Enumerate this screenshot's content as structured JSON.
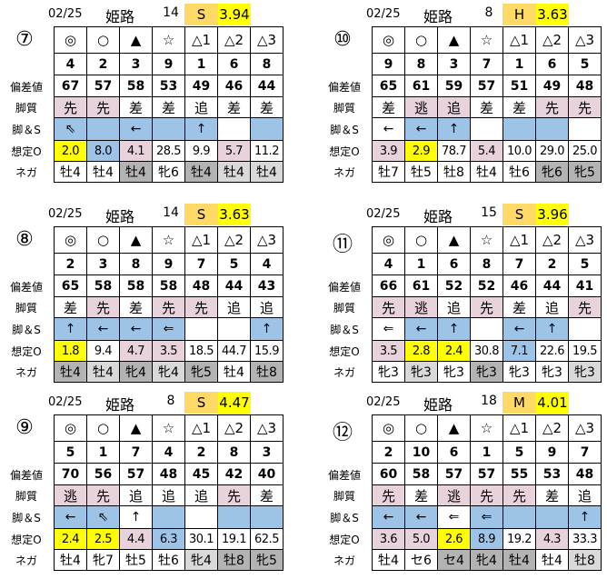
{
  "labels": {
    "dev": "偏差値",
    "style": "脚質",
    "arrow": "脚＆S",
    "odds": "想定O",
    "neg": "ネガ"
  },
  "marks": [
    "◎",
    "○",
    "▲",
    "☆",
    "△1",
    "△2",
    "△3"
  ],
  "colors": {
    "p": "#e8d3dd",
    "b": "#9dc3e6",
    "y": "#ffff00",
    "dg": "#b3b3b3",
    "lg": "#d9d9d9",
    "cond": "#ffd966",
    "index": "#ffff00"
  },
  "panels": [
    {
      "circle": "⑦",
      "date": "02/25",
      "place": "姫路",
      "race": "14",
      "cond": "S",
      "index": "3.94",
      "nums": [
        "4",
        "2",
        "3",
        "9",
        "1",
        "6",
        "8"
      ],
      "dev": [
        "67",
        "57",
        "58",
        "53",
        "49",
        "46",
        "44"
      ],
      "style": [
        "先",
        "先",
        "差",
        "差",
        "追",
        "差",
        "差"
      ],
      "style_c": [
        "p",
        "p",
        "",
        "",
        "",
        "",
        ""
      ],
      "arrow": [
        "⇖",
        "",
        "←",
        "",
        "↑",
        "",
        ""
      ],
      "arrow_c": [
        "b",
        "b",
        "b",
        "b",
        "b",
        "",
        "b"
      ],
      "odds": [
        "2.0",
        "8.0",
        "4.1",
        "28.5",
        "9.9",
        "5.7",
        "11.2"
      ],
      "odds_c": [
        "y",
        "b",
        "p",
        "",
        "",
        "p",
        ""
      ],
      "neg": [
        "牡4",
        "牡4",
        "牡4",
        "牝6",
        "牡4",
        "牡4",
        "牡4"
      ],
      "neg_c": [
        "",
        "",
        "dg",
        "",
        "dg",
        "lg",
        "lg"
      ]
    },
    {
      "circle": "⑩",
      "date": "02/25",
      "place": "姫路",
      "race": "8",
      "cond": "H",
      "index": "3.63",
      "nums": [
        "9",
        "8",
        "3",
        "7",
        "1",
        "6",
        "5"
      ],
      "dev": [
        "65",
        "61",
        "59",
        "57",
        "51",
        "49",
        "48"
      ],
      "style": [
        "差",
        "逃",
        "追",
        "差",
        "差",
        "先",
        "先"
      ],
      "style_c": [
        "",
        "p",
        "p",
        "",
        "",
        "p",
        "p"
      ],
      "arrow": [
        "←",
        "←",
        "↑",
        "",
        "",
        "",
        ""
      ],
      "arrow_c": [
        "",
        "b",
        "b",
        "",
        "b",
        "b",
        ""
      ],
      "odds": [
        "3.9",
        "2.9",
        "78.7",
        "5.4",
        "10.0",
        "29.0",
        "25.0"
      ],
      "odds_c": [
        "p",
        "y",
        "",
        "p",
        "",
        "",
        ""
      ],
      "neg": [
        "牡7",
        "牡5",
        "牡8",
        "牡4",
        "牡6",
        "牝6",
        "牝5"
      ],
      "neg_c": [
        "",
        "",
        "",
        "",
        "",
        "dg",
        "dg"
      ]
    },
    {
      "circle": "⑧",
      "date": "02/25",
      "place": "姫路",
      "race": "14",
      "cond": "S",
      "index": "3.63",
      "nums": [
        "2",
        "3",
        "8",
        "9",
        "7",
        "5",
        "4"
      ],
      "dev": [
        "65",
        "58",
        "58",
        "58",
        "48",
        "44",
        "43"
      ],
      "style": [
        "差",
        "先",
        "差",
        "先",
        "先",
        "追",
        "追"
      ],
      "style_c": [
        "",
        "p",
        "",
        "p",
        "p",
        "",
        ""
      ],
      "arrow": [
        "↑",
        "←",
        "←",
        "⇐",
        "",
        "",
        "↑"
      ],
      "arrow_c": [
        "b",
        "b",
        "b",
        "b",
        "",
        "",
        "b"
      ],
      "odds": [
        "1.8",
        "9.4",
        "4.7",
        "3.5",
        "18.5",
        "44.7",
        "15.9"
      ],
      "odds_c": [
        "y",
        "",
        "p",
        "p",
        "",
        "",
        ""
      ],
      "neg": [
        "牡4",
        "牡4",
        "牝4",
        "牝4",
        "牝5",
        "牡4",
        "牡8"
      ],
      "neg_c": [
        "dg",
        "lg",
        "dg",
        "lg",
        "dg",
        "",
        "dg"
      ]
    },
    {
      "circle": "⑪",
      "date": "02/25",
      "place": "姫路",
      "race": "15",
      "cond": "S",
      "index": "3.96",
      "nums": [
        "4",
        "1",
        "6",
        "8",
        "7",
        "2",
        "5"
      ],
      "dev": [
        "66",
        "61",
        "52",
        "52",
        "46",
        "44",
        "41"
      ],
      "style": [
        "先",
        "逃",
        "追",
        "先",
        "差",
        "追",
        "先"
      ],
      "style_c": [
        "p",
        "p",
        "",
        "p",
        "",
        "",
        "p"
      ],
      "arrow": [
        "⇐",
        "←",
        "↑",
        "",
        "←",
        "↑",
        ""
      ],
      "arrow_c": [
        "",
        "b",
        "b",
        "",
        "b",
        "b",
        ""
      ],
      "odds": [
        "3.5",
        "2.8",
        "2.4",
        "30.8",
        "7.1",
        "22.6",
        "19.5"
      ],
      "odds_c": [
        "p",
        "y",
        "y",
        "",
        "b",
        "",
        ""
      ],
      "neg": [
        "牝3",
        "牝3",
        "牝3",
        "牝3",
        "牝3",
        "牝3",
        "牝3"
      ],
      "neg_c": [
        "",
        "lg",
        "",
        "dg",
        "",
        "",
        "lg"
      ]
    },
    {
      "circle": "⑨",
      "date": "02/25",
      "place": "姫路",
      "race": "8",
      "cond": "S",
      "index": "4.47",
      "nums": [
        "5",
        "1",
        "7",
        "4",
        "2",
        "8",
        "3"
      ],
      "dev": [
        "70",
        "56",
        "57",
        "48",
        "45",
        "42",
        "40"
      ],
      "style": [
        "逃",
        "先",
        "追",
        "追",
        "追",
        "先",
        "差"
      ],
      "style_c": [
        "p",
        "p",
        "",
        "",
        "",
        "p",
        ""
      ],
      "arrow": [
        "←",
        "⇖",
        "↑",
        "",
        "",
        "",
        ""
      ],
      "arrow_c": [
        "b",
        "b",
        "",
        "b",
        "",
        "b",
        "b"
      ],
      "odds": [
        "2.4",
        "2.5",
        "4.4",
        "6.3",
        "30.1",
        "19.1",
        "62.5"
      ],
      "odds_c": [
        "y",
        "y",
        "p",
        "b",
        "",
        "",
        ""
      ],
      "neg": [
        "牡4",
        "牝7",
        "牡5",
        "牡6",
        "牝4",
        "牡8",
        "牝5"
      ],
      "neg_c": [
        "",
        "",
        "",
        "",
        "lg",
        "dg",
        "dg"
      ]
    },
    {
      "circle": "⑫",
      "date": "02/25",
      "place": "姫路",
      "race": "18",
      "cond": "M",
      "index": "4.01",
      "nums": [
        "2",
        "10",
        "6",
        "1",
        "5",
        "9",
        "7"
      ],
      "dev": [
        "60",
        "58",
        "57",
        "57",
        "55",
        "53",
        "48"
      ],
      "style": [
        "先",
        "差",
        "逃",
        "先",
        "先",
        "差",
        "追"
      ],
      "style_c": [
        "p",
        "",
        "p",
        "p",
        "p",
        "",
        ""
      ],
      "arrow": [
        "←",
        "←",
        "⇐",
        "⇐",
        "",
        "",
        "↑"
      ],
      "arrow_c": [
        "b",
        "b",
        "",
        "b",
        "b",
        "b",
        "b"
      ],
      "odds": [
        "3.6",
        "5.0",
        "2.6",
        "8.9",
        "19.2",
        "4.3",
        "33.3"
      ],
      "odds_c": [
        "p",
        "p",
        "y",
        "b",
        "",
        "p",
        ""
      ],
      "neg": [
        "牡4",
        "セ6",
        "セ4",
        "牝4",
        "牡4",
        "牡4",
        "牡8"
      ],
      "neg_c": [
        "",
        "",
        "dg",
        "dg",
        "dg",
        "",
        "lg"
      ]
    }
  ]
}
